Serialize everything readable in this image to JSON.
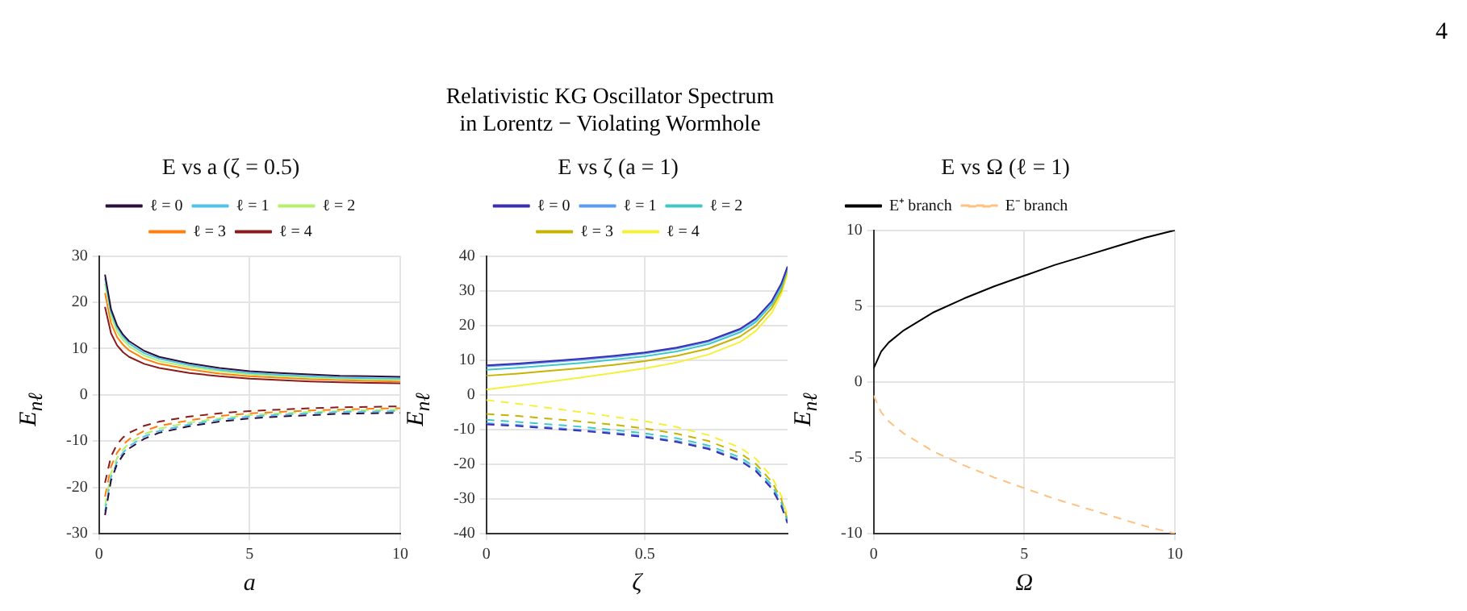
{
  "chart_data": [
    {
      "type": "line",
      "title": "E vs a (ζ = 0.5)",
      "xlabel": "a",
      "ylabel": "E$_{nℓ}$",
      "annotations": [
        "Relativistic KG Oscillator Spectrum\nin Lorentz − Violating Wormhole",
        "4"
      ],
      "x": [
        0.2,
        0.4,
        0.6,
        0.8,
        1,
        1.5,
        2,
        3,
        4,
        5,
        6,
        7,
        8,
        9,
        10
      ],
      "xlim": [
        0,
        10
      ],
      "xticks": [
        0,
        5,
        10
      ],
      "ylim": [
        -30,
        30
      ],
      "yticks": [
        -30,
        -20,
        -10,
        0,
        10,
        20,
        30
      ],
      "grid": true,
      "legend": "top",
      "marker": "none",
      "series": [
        {
          "name": "ℓ = 0",
          "color": "#2b0f3b",
          "values": [
            26,
            18.5,
            15,
            13,
            11.6,
            9.5,
            8.2,
            6.8,
            5.8,
            5.1,
            4.7,
            4.4,
            4.1,
            4.0,
            3.9
          ]
        },
        {
          "name": "ℓ = 1",
          "color": "#4fc3e8",
          "values": [
            25.2,
            17.8,
            14.5,
            12.5,
            11.1,
            9.0,
            7.8,
            6.4,
            5.4,
            4.7,
            4.3,
            4.0,
            3.7,
            3.6,
            3.5
          ]
        },
        {
          "name": "ℓ = 2",
          "color": "#b5f06a",
          "values": [
            24,
            16.9,
            13.7,
            11.8,
            10.5,
            8.5,
            7.3,
            6.0,
            5.1,
            4.4,
            4.0,
            3.7,
            3.5,
            3.3,
            3.2
          ]
        },
        {
          "name": "ℓ = 3",
          "color": "#ff7f0e",
          "values": [
            22,
            15.5,
            12.5,
            10.8,
            9.6,
            7.8,
            6.7,
            5.5,
            4.6,
            4.0,
            3.7,
            3.4,
            3.2,
            3.0,
            2.9
          ]
        },
        {
          "name": "ℓ = 4",
          "color": "#8b1a1a",
          "values": [
            19,
            13.3,
            10.7,
            9.2,
            8.2,
            6.7,
            5.8,
            4.7,
            4.0,
            3.5,
            3.2,
            2.9,
            2.7,
            2.6,
            2.5
          ]
        },
        {
          "color": "#2b0f3b",
          "line_style": "dashed",
          "values": [
            -26,
            -18.5,
            -15,
            -13,
            -11.6,
            -9.5,
            -8.2,
            -6.8,
            -5.8,
            -5.1,
            -4.7,
            -4.4,
            -4.1,
            -4.0,
            -3.9
          ]
        },
        {
          "color": "#4fc3e8",
          "line_style": "dashed",
          "values": [
            -25.2,
            -17.8,
            -14.5,
            -12.5,
            -11.1,
            -9.0,
            -7.8,
            -6.4,
            -5.4,
            -4.7,
            -4.3,
            -4.0,
            -3.7,
            -3.6,
            -3.5
          ]
        },
        {
          "color": "#b5f06a",
          "line_style": "dashed",
          "values": [
            -24,
            -16.9,
            -13.7,
            -11.8,
            -10.5,
            -8.5,
            -7.3,
            -6.0,
            -5.1,
            -4.4,
            -4.0,
            -3.7,
            -3.5,
            -3.3,
            -3.2
          ]
        },
        {
          "color": "#ff7f0e",
          "line_style": "dashed",
          "values": [
            -22,
            -15.5,
            -12.5,
            -10.8,
            -9.6,
            -7.8,
            -6.7,
            -5.5,
            -4.6,
            -4.0,
            -3.7,
            -3.4,
            -3.2,
            -3.0,
            -2.9
          ]
        },
        {
          "color": "#8b1a1a",
          "line_style": "dashed",
          "values": [
            -19,
            -13.3,
            -10.7,
            -9.2,
            -8.2,
            -6.7,
            -5.8,
            -4.7,
            -4.0,
            -3.5,
            -3.2,
            -2.9,
            -2.7,
            -2.6,
            -2.5
          ]
        }
      ]
    },
    {
      "type": "line",
      "title": "E vs ζ (a = 1)",
      "xlabel": "ζ",
      "ylabel": "E$_{nℓ}$",
      "x": [
        0,
        0.1,
        0.2,
        0.3,
        0.4,
        0.5,
        0.6,
        0.7,
        0.8,
        0.85,
        0.9,
        0.93,
        0.95
      ],
      "xlim": [
        0,
        0.95
      ],
      "xticks": [
        0,
        0.5
      ],
      "ylim": [
        -40,
        40
      ],
      "yticks": [
        -40,
        -30,
        -20,
        -10,
        0,
        10,
        20,
        30,
        40
      ],
      "grid": true,
      "legend": "top",
      "marker": "none",
      "series": [
        {
          "name": "ℓ = 0",
          "color": "#3a2fb0",
          "values": [
            8.5,
            9,
            9.7,
            10.4,
            11.2,
            12.2,
            13.6,
            15.6,
            19,
            22,
            27,
            32,
            37
          ]
        },
        {
          "name": "ℓ = 1",
          "color": "#5b9cf0",
          "values": [
            8.2,
            8.7,
            9.4,
            10.1,
            10.9,
            11.9,
            13.3,
            15.3,
            18.7,
            21.7,
            26.7,
            31.7,
            36.8
          ]
        },
        {
          "name": "ℓ = 2",
          "color": "#40c8c8",
          "values": [
            7.2,
            7.8,
            8.5,
            9.2,
            10.1,
            11.1,
            12.5,
            14.6,
            18,
            21,
            26,
            31,
            36.5
          ]
        },
        {
          "name": "ℓ = 3",
          "color": "#c8b400",
          "values": [
            5.5,
            6.1,
            6.9,
            7.7,
            8.6,
            9.7,
            11.2,
            13.3,
            16.8,
            19.9,
            25,
            30,
            36
          ]
        },
        {
          "name": "ℓ = 4",
          "color": "#f5f03c",
          "values": [
            1.5,
            2.6,
            3.8,
            5.0,
            6.3,
            7.6,
            9.3,
            11.6,
            15.2,
            18.4,
            23.6,
            29,
            35
          ]
        },
        {
          "color": "#3a2fb0",
          "line_style": "dashed",
          "values": [
            -8.5,
            -9,
            -9.7,
            -10.4,
            -11.2,
            -12.2,
            -13.6,
            -15.6,
            -19,
            -22,
            -27,
            -32,
            -37
          ]
        },
        {
          "color": "#5b9cf0",
          "line_style": "dashed",
          "values": [
            -8.2,
            -8.7,
            -9.4,
            -10.1,
            -10.9,
            -11.9,
            -13.3,
            -15.3,
            -18.7,
            -21.7,
            -26.7,
            -31.7,
            -36.8
          ]
        },
        {
          "color": "#40c8c8",
          "line_style": "dashed",
          "values": [
            -7.2,
            -7.8,
            -8.5,
            -9.2,
            -10.1,
            -11.1,
            -12.5,
            -14.6,
            -18,
            -21,
            -26,
            -31,
            -36.5
          ]
        },
        {
          "color": "#c8b400",
          "line_style": "dashed",
          "values": [
            -5.5,
            -6.1,
            -6.9,
            -7.7,
            -8.6,
            -9.7,
            -11.2,
            -13.3,
            -16.8,
            -19.9,
            -25,
            -30,
            -36
          ]
        },
        {
          "color": "#f5f03c",
          "line_style": "dashed",
          "values": [
            -1.5,
            -2.6,
            -3.8,
            -5.0,
            -6.3,
            -7.6,
            -9.3,
            -11.6,
            -15.2,
            -18.4,
            -23.6,
            -29,
            -35
          ]
        }
      ]
    },
    {
      "type": "line",
      "title": "E vs Ω (ℓ = 1)",
      "xlabel": "Ω",
      "ylabel": "E$_{nℓ}$",
      "x": [
        0,
        0.25,
        0.5,
        1,
        2,
        3,
        4,
        5,
        6,
        7,
        8,
        9,
        10
      ],
      "xlim": [
        0,
        10
      ],
      "xticks": [
        0,
        5,
        10
      ],
      "ylim": [
        -10,
        10
      ],
      "yticks": [
        -10,
        -5,
        0,
        5,
        10
      ],
      "grid": true,
      "legend": "top left",
      "marker": "none",
      "series": [
        {
          "name": "E⁺ branch",
          "color": "#000000",
          "values": [
            0.9,
            2.0,
            2.6,
            3.4,
            4.6,
            5.5,
            6.3,
            7.0,
            7.7,
            8.3,
            8.9,
            9.5,
            10
          ]
        },
        {
          "name": "E⁻ branch",
          "color": "#ffc080",
          "line_style": "dashed",
          "values": [
            -0.9,
            -2.0,
            -2.6,
            -3.4,
            -4.6,
            -5.5,
            -6.3,
            -7.0,
            -7.7,
            -8.3,
            -8.9,
            -9.5,
            -10
          ]
        }
      ]
    }
  ]
}
